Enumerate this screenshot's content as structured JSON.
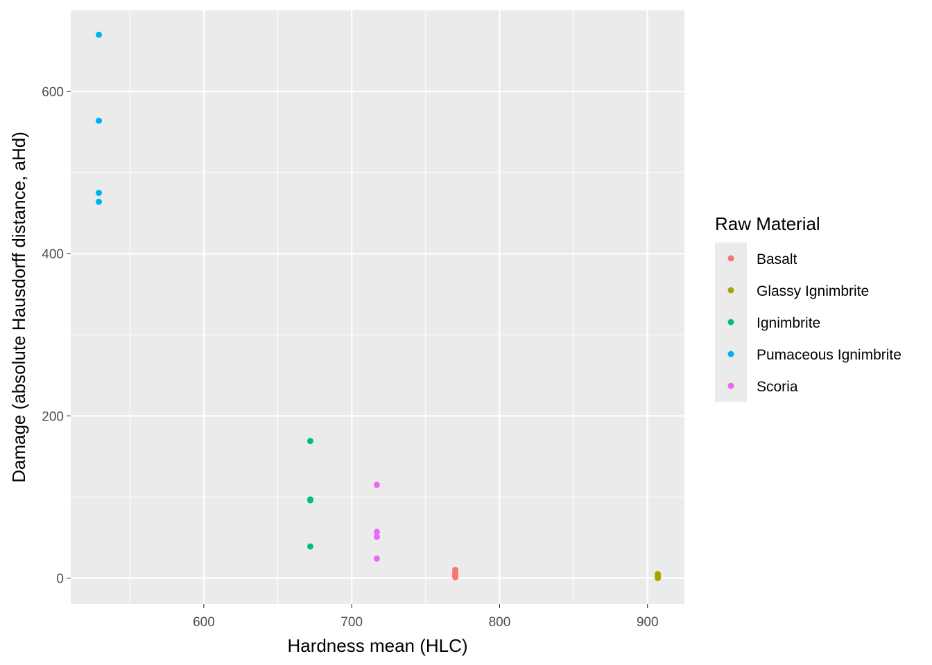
{
  "chart_data": {
    "type": "scatter",
    "title": "",
    "xlabel": "Hardness mean (HLC)",
    "ylabel": "Damage (absolute Hausdorff distance, aHd)",
    "xlim": [
      510,
      925
    ],
    "ylim": [
      -32,
      700
    ],
    "x_ticks": [
      600,
      700,
      800,
      900
    ],
    "x_minor_ticks": [
      550,
      650,
      750,
      850
    ],
    "y_ticks": [
      0,
      200,
      400,
      600
    ],
    "y_minor_ticks": [
      100,
      300,
      500
    ],
    "grid": true,
    "legend_position": "right",
    "legend_title": "Raw Material",
    "series": [
      {
        "name": "Basalt",
        "color": "#F8766D",
        "points": [
          [
            770,
            10
          ],
          [
            770,
            6
          ],
          [
            770,
            3
          ],
          [
            770,
            1
          ]
        ]
      },
      {
        "name": "Glassy Ignimbrite",
        "color": "#A3A500",
        "points": [
          [
            907,
            5
          ],
          [
            907,
            2
          ],
          [
            907,
            0
          ]
        ]
      },
      {
        "name": "Ignimbrite",
        "color": "#00BF7D",
        "points": [
          [
            672,
            169
          ],
          [
            672,
            97
          ],
          [
            672,
            96
          ],
          [
            672,
            39
          ]
        ]
      },
      {
        "name": "Pumaceous Ignimbrite",
        "color": "#00B0F6",
        "points": [
          [
            529,
            670
          ],
          [
            529,
            564
          ],
          [
            529,
            475
          ],
          [
            529,
            464
          ]
        ]
      },
      {
        "name": "Scoria",
        "color": "#E76BF3",
        "points": [
          [
            717,
            115
          ],
          [
            717,
            57
          ],
          [
            717,
            51
          ],
          [
            717,
            24
          ]
        ]
      }
    ]
  }
}
